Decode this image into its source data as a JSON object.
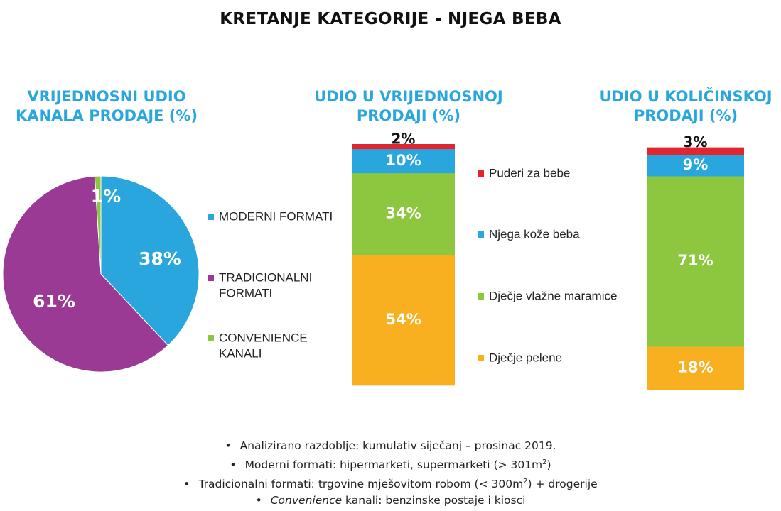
{
  "title": "KRETANJE KATEGORIJE - NJEGA BEBA",
  "colors": {
    "accent_title": "#2aa6df",
    "moderni": "#2aa6df",
    "tradicionalni": "#9b3a95",
    "convenience": "#8dc63f",
    "puderi": "#e2252f",
    "njega_koze": "#2aa6df",
    "maramice": "#8dc63f",
    "pelene": "#f8b020"
  },
  "chart_data": [
    {
      "type": "pie",
      "title": "VRIJEDNOSNI UDIO KANALA PRODAJE (%)",
      "title_lines": [
        "VRIJEDNOSNI UDIO",
        "KANALA PRODAJE (%)"
      ],
      "slices": [
        {
          "label": "MODERNI FORMATI",
          "label_lines": [
            "MODERNI FORMATI"
          ],
          "value": 38,
          "value_label": "38%",
          "color": "#2aa6df"
        },
        {
          "label": "TRADICIONALNI FORMATI",
          "label_lines": [
            "TRADICIONALNI",
            "FORMATI"
          ],
          "value": 61,
          "value_label": "61%",
          "color": "#9b3a95"
        },
        {
          "label": "CONVENIENCE KANALI",
          "label_lines": [
            "CONVENIENCE",
            "KANALI"
          ],
          "value": 1,
          "value_label": "1%",
          "color": "#8dc63f"
        }
      ],
      "legend_position": "right"
    },
    {
      "type": "bar",
      "stacked": true,
      "title": "UDIO U VRIJEDNOSNOJ PRODAJI (%)",
      "title_lines": [
        "UDIO U VRIJEDNOSNOJ",
        "PRODAJI (%)"
      ],
      "series": [
        {
          "name": "Dječje pelene",
          "value": 54,
          "value_label": "54%",
          "color": "#f8b020"
        },
        {
          "name": "Dječje vlažne maramice",
          "value": 34,
          "value_label": "34%",
          "color": "#8dc63f"
        },
        {
          "name": "Njega kože beba",
          "value": 10,
          "value_label": "10%",
          "color": "#2aa6df"
        },
        {
          "name": "Puderi za bebe",
          "value": 2,
          "value_label": "2%",
          "color": "#e2252f"
        }
      ],
      "ylim": [
        0,
        100
      ]
    },
    {
      "type": "bar",
      "stacked": true,
      "title": "UDIO U KOLIČINSKOJ PRODAJI (%)",
      "title_lines": [
        "UDIO U KOLIČINSKOJ",
        "PRODAJI (%)"
      ],
      "series": [
        {
          "name": "Dječje pelene",
          "value": 18,
          "value_label": "18%",
          "color": "#f8b020"
        },
        {
          "name": "Dječje vlažne maramice",
          "value": 71,
          "value_label": "71%",
          "color": "#8dc63f"
        },
        {
          "name": "Njega kože beba",
          "value": 9,
          "value_label": "9%",
          "color": "#2aa6df"
        },
        {
          "name": "Puderi za bebe",
          "value": 3,
          "value_label": "3%",
          "color": "#e2252f"
        }
      ],
      "ylim": [
        0,
        100
      ]
    }
  ],
  "bar_legend": [
    {
      "name": "Puderi za bebe",
      "color": "#e2252f"
    },
    {
      "name": "Njega kože beba",
      "color": "#2aa6df"
    },
    {
      "name": "Dječje vlažne maramice",
      "color": "#8dc63f"
    },
    {
      "name": "Dječje pelene",
      "color": "#f8b020"
    }
  ],
  "footnotes": {
    "line1": "Analizirano razdoblje: kumulativ siječanj – prosinac 2019.",
    "line2_pre": "Moderni formati: hipermarketi, supermarketi (> 301m",
    "line2_sup": "2",
    "line2_post": ")",
    "line3_pre": "Tradicionalni formati: trgovine mješovitom robom (< 300m",
    "line3_sup": "2",
    "line3_post": ") + drogerije",
    "line4_italic": "Convenience",
    "line4_rest": " kanali: benzinske postaje i kiosci",
    "bullet": "•"
  }
}
